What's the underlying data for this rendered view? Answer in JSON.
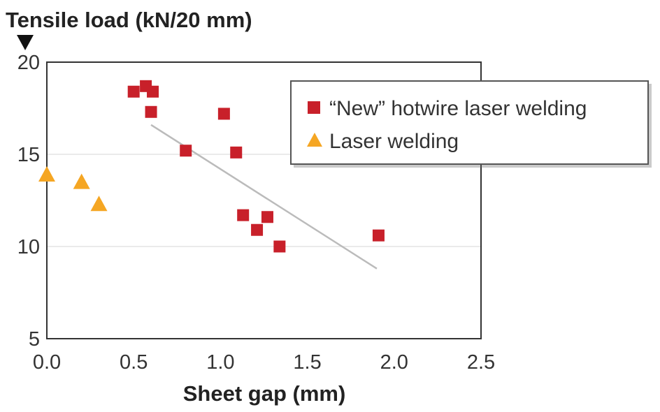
{
  "chart_data": {
    "type": "scatter",
    "ylabel": "Tensile load (kN/20 mm)",
    "xlabel": "Sheet gap (mm)",
    "xlim": [
      0,
      2.5
    ],
    "ylim": [
      5,
      20
    ],
    "xticks": [
      "0.0",
      "0.5",
      "1.0",
      "1.5",
      "2.0",
      "2.5"
    ],
    "yticks": [
      "5",
      "10",
      "15",
      "20"
    ],
    "grid": true,
    "legend_position": "top-right",
    "series": [
      {
        "name": "“New” hotwire laser welding",
        "marker": "square",
        "color": "#c8202a",
        "points": [
          {
            "x": 0.5,
            "y": 18.4
          },
          {
            "x": 0.57,
            "y": 18.7
          },
          {
            "x": 0.61,
            "y": 18.4
          },
          {
            "x": 0.6,
            "y": 17.3
          },
          {
            "x": 0.8,
            "y": 15.2
          },
          {
            "x": 1.02,
            "y": 17.2
          },
          {
            "x": 1.09,
            "y": 15.1
          },
          {
            "x": 1.13,
            "y": 11.7
          },
          {
            "x": 1.21,
            "y": 10.9
          },
          {
            "x": 1.27,
            "y": 11.6
          },
          {
            "x": 1.34,
            "y": 10.0
          },
          {
            "x": 1.91,
            "y": 10.6
          }
        ]
      },
      {
        "name": "Laser welding",
        "marker": "triangle",
        "color": "#f5a623",
        "points": [
          {
            "x": 0.0,
            "y": 13.9
          },
          {
            "x": 0.2,
            "y": 13.5
          },
          {
            "x": 0.3,
            "y": 12.3
          }
        ]
      }
    ],
    "trendline": {
      "color": "#bbbbbb",
      "points": [
        {
          "x": 0.6,
          "y": 16.6
        },
        {
          "x": 1.9,
          "y": 8.8
        }
      ]
    }
  }
}
